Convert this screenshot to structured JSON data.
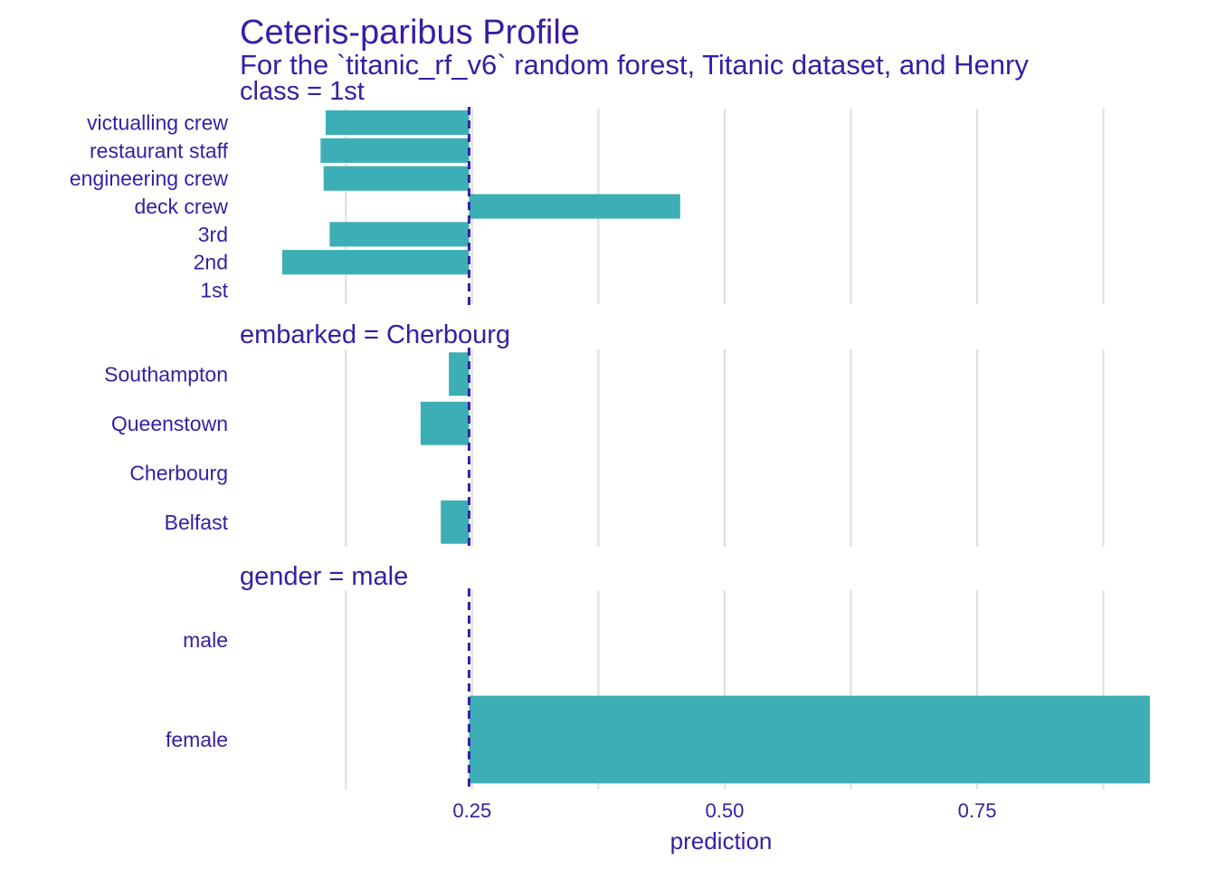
{
  "chart_data": {
    "type": "bar",
    "title": "Ceteris-paribus Profile",
    "subtitle": "For the `titanic_rf_v6` random forest, Titanic dataset, and Henry",
    "xlabel": "prediction",
    "ylabel": "",
    "baseline": 0.247,
    "xlim": [
      0.02,
      0.93
    ],
    "x_ticks": [
      "0.25",
      "0.50",
      "0.75"
    ],
    "x_tick_values": [
      0.25,
      0.5,
      0.75
    ],
    "grid": true,
    "legend": "none",
    "colors": {
      "bar": "#3cafb6",
      "text": "#371ea3",
      "grid": "#e0e0e0",
      "baseline": "#371ea3"
    },
    "panels": [
      {
        "label": "class = 1st",
        "categories": [
          "victualling crew",
          "restaurant staff",
          "engineering crew",
          "deck crew",
          "3rd",
          "2nd",
          "1st"
        ],
        "values": [
          0.105,
          0.1,
          0.103,
          0.456,
          0.109,
          0.062,
          0.247
        ]
      },
      {
        "label": "embarked = Cherbourg",
        "categories": [
          "Southampton",
          "Queenstown",
          "Cherbourg",
          "Belfast"
        ],
        "values": [
          0.227,
          0.199,
          0.247,
          0.219
        ]
      },
      {
        "label": "gender = male",
        "categories": [
          "male",
          "female"
        ],
        "values": [
          0.247,
          0.921
        ]
      }
    ]
  }
}
